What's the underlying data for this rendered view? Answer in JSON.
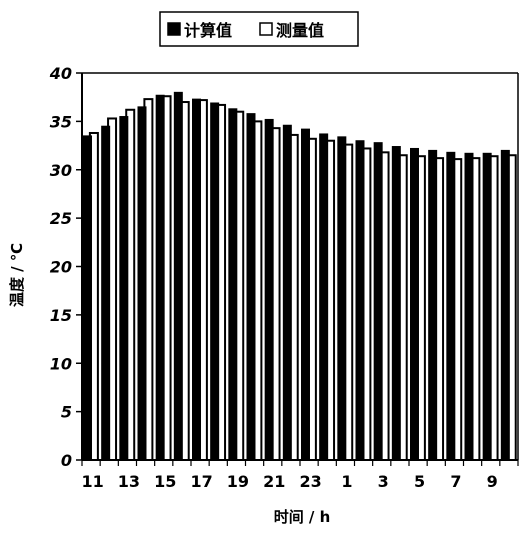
{
  "chart_data": {
    "type": "bar",
    "categories": [
      "11",
      "12",
      "13",
      "14",
      "15",
      "16",
      "17",
      "18",
      "19",
      "20",
      "21",
      "22",
      "23",
      "24",
      "1",
      "2",
      "3",
      "4",
      "5",
      "6",
      "7",
      "8",
      "9",
      "10"
    ],
    "x_tick_labels": [
      "11",
      "13",
      "15",
      "17",
      "19",
      "21",
      "23",
      "1",
      "3",
      "5",
      "7",
      "9"
    ],
    "series": [
      {
        "name": "计算值",
        "values": [
          33.5,
          34.5,
          35.5,
          36.5,
          37.7,
          38.0,
          37.3,
          36.9,
          36.3,
          35.8,
          35.2,
          34.6,
          34.2,
          33.7,
          33.4,
          33.0,
          32.8,
          32.4,
          32.2,
          32.0,
          31.8,
          31.7,
          31.7,
          32.0
        ]
      },
      {
        "name": "测量值",
        "values": [
          33.8,
          35.3,
          36.2,
          37.3,
          37.6,
          37.0,
          37.2,
          36.7,
          36.0,
          35.0,
          34.3,
          33.6,
          33.2,
          33.0,
          32.6,
          32.2,
          31.8,
          31.5,
          31.4,
          31.2,
          31.1,
          31.2,
          31.4,
          31.5
        ]
      }
    ],
    "xlabel": "时间 / h",
    "ylabel": "温度 / ℃",
    "ylim": [
      0,
      40
    ],
    "yticks": [
      0,
      5,
      10,
      15,
      20,
      25,
      30,
      35,
      40
    ],
    "grid": false,
    "legend": "top-center"
  }
}
